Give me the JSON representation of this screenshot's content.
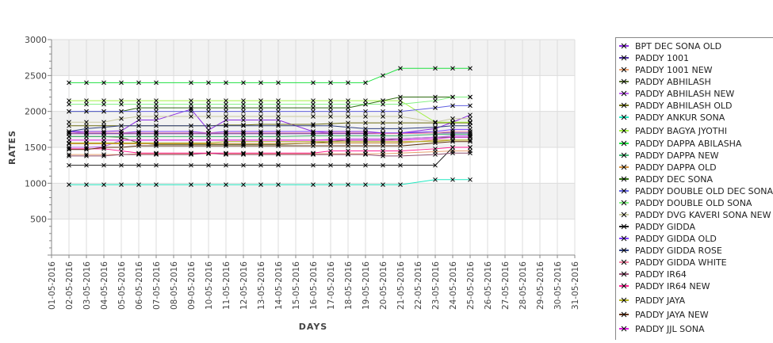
{
  "chart_data": {
    "type": "line",
    "title": "",
    "xlabel": "DAYS",
    "ylabel": "RATES",
    "ylim": [
      0,
      3000
    ],
    "yticks": [
      500,
      1000,
      1500,
      2000,
      2500,
      3000
    ],
    "grid": true,
    "legend_position": "right",
    "x_tick_labels": [
      "01-05-2016",
      "02-05-2016",
      "03-05-2016",
      "04-05-2016",
      "05-05-2016",
      "06-05-2016",
      "07-05-2016",
      "08-05-2016",
      "09-05-2016",
      "10-05-2016",
      "11-05-2016",
      "12-05-2016",
      "13-05-2016",
      "14-05-2016",
      "15-05-2016",
      "16-05-2016",
      "17-05-2016",
      "18-05-2016",
      "19-05-2016",
      "20-05-2016",
      "21-05-2016",
      "22-05-2016",
      "23-05-2016",
      "24-05-2016",
      "25-05-2016",
      "26-05-2016",
      "27-05-2016",
      "28-05-2016",
      "29-05-2016",
      "30-05-2016",
      "31-05-2016"
    ],
    "x_days": [
      2,
      3,
      4,
      5,
      6,
      7,
      9,
      10,
      11,
      12,
      13,
      14,
      16,
      17,
      18,
      19,
      20,
      21,
      23,
      24,
      25
    ],
    "series": [
      {
        "name": "BPT DEC SONA OLD",
        "color": "#8a2be2",
        "values": [
          1720,
          1720,
          1720,
          1730,
          1880,
          1880,
          2030,
          1740,
          1880,
          1880,
          1880,
          1880,
          1720,
          1720,
          1720,
          1720,
          1700,
          1700,
          1760,
          1850,
          1950
        ]
      },
      {
        "name": "PADDY 1001",
        "color": "#4b2ca0",
        "values": [
          1690,
          1690,
          1690,
          1690,
          1690,
          1690,
          1690,
          1690,
          1690,
          1690,
          1690,
          1690,
          1690,
          1690,
          1690,
          1690,
          1690,
          1700,
          1700,
          1700,
          1700
        ]
      },
      {
        "name": "PADDY 1001 NEW",
        "color": "#e8a070",
        "values": [
          1400,
          1400,
          1400,
          1400,
          1410,
          1410,
          1410,
          1410,
          1410,
          1410,
          1410,
          1410,
          1410,
          1410,
          1410,
          1410,
          1410,
          1420,
          1440,
          1450,
          1450
        ]
      },
      {
        "name": "PADDY ABHILASH",
        "color": "#556b2f",
        "values": [
          1650,
          1650,
          1650,
          1640,
          1560,
          1540,
          1540,
          1540,
          1540,
          1540,
          1540,
          1540,
          1560,
          1580,
          1600,
          1600,
          1600,
          1620,
          1640,
          1640,
          1640
        ]
      },
      {
        "name": "PADDY ABHILASH NEW",
        "color": "#c060f0",
        "values": [
          1500,
          1500,
          1510,
          1600,
          1600,
          1600,
          1600,
          1600,
          1600,
          1600,
          1600,
          1600,
          1600,
          1610,
          1620,
          1620,
          1620,
          1620,
          1640,
          1660,
          1660
        ]
      },
      {
        "name": "PADDY ABHILASH OLD",
        "color": "#6b6b10",
        "values": [
          1800,
          1800,
          1800,
          1800,
          1800,
          1800,
          1800,
          1800,
          1810,
          1810,
          1820,
          1820,
          1820,
          1830,
          1840,
          1840,
          1840,
          1840,
          1840,
          1840,
          1840
        ]
      },
      {
        "name": "PADDY ANKUR SONA",
        "color": "#20e8c0",
        "values": [
          980,
          980,
          980,
          980,
          980,
          980,
          980,
          980,
          980,
          980,
          980,
          980,
          980,
          980,
          980,
          980,
          980,
          980,
          1050,
          1050,
          1050
        ]
      },
      {
        "name": "PADDY BAGYA JYOTHI",
        "color": "#a0f040",
        "values": [
          2150,
          2150,
          2150,
          2150,
          2150,
          2150,
          2150,
          2150,
          2150,
          2150,
          2150,
          2150,
          2150,
          2150,
          2150,
          2150,
          2150,
          2150,
          1850,
          1850,
          1850
        ]
      },
      {
        "name": "PADDY DAPPA ABILASHA",
        "color": "#20e040",
        "values": [
          2400,
          2400,
          2400,
          2400,
          2400,
          2400,
          2400,
          2400,
          2400,
          2400,
          2400,
          2400,
          2400,
          2400,
          2400,
          2400,
          2500,
          2600,
          2600,
          2600,
          2600
        ]
      },
      {
        "name": "PADDY DAPPA NEW",
        "color": "#40b070",
        "values": [
          1650,
          1650,
          1650,
          1650,
          1650,
          1650,
          1650,
          1650,
          1650,
          1650,
          1650,
          1650,
          1660,
          1660,
          1660,
          1660,
          1660,
          1660,
          1680,
          1680,
          1680
        ]
      },
      {
        "name": "PADDY DAPPA OLD",
        "color": "#d09040",
        "values": [
          1550,
          1550,
          1550,
          1550,
          1550,
          1550,
          1550,
          1550,
          1550,
          1550,
          1550,
          1550,
          1560,
          1560,
          1560,
          1560,
          1560,
          1560,
          1600,
          1600,
          1600
        ]
      },
      {
        "name": "PADDY DEC SONA",
        "color": "#2e6b10",
        "values": [
          2000,
          2000,
          2000,
          2000,
          2050,
          2050,
          2050,
          2050,
          2050,
          2050,
          2050,
          2050,
          2050,
          2050,
          2050,
          2100,
          2150,
          2200,
          2200,
          2200,
          2200
        ]
      },
      {
        "name": "PADDY DOUBLE OLD DEC SONA",
        "color": "#6060e0",
        "values": [
          2000,
          2000,
          2000,
          2000,
          2000,
          2000,
          2000,
          2000,
          2000,
          2000,
          2000,
          2000,
          2000,
          2000,
          2000,
          2000,
          2000,
          2000,
          2050,
          2080,
          2080
        ]
      },
      {
        "name": "PADDY DOUBLE OLD SONA",
        "color": "#80f080",
        "values": [
          2100,
          2100,
          2100,
          2100,
          2100,
          2100,
          2100,
          2100,
          2100,
          2100,
          2100,
          2100,
          2100,
          2100,
          2100,
          2100,
          2100,
          2100,
          2150,
          2200,
          2200
        ]
      },
      {
        "name": "PADDY DVG KAVERI SONA NEW",
        "color": "#c8c8a0",
        "values": [
          1850,
          1850,
          1850,
          1900,
          1930,
          1930,
          1930,
          1930,
          1930,
          1930,
          1930,
          1930,
          1930,
          1930,
          1930,
          1930,
          1930,
          1930,
          1850,
          1900,
          1900
        ]
      },
      {
        "name": "PADDY GIDDA",
        "color": "#202020",
        "values": [
          1250,
          1250,
          1250,
          1250,
          1250,
          1250,
          1250,
          1250,
          1250,
          1250,
          1250,
          1250,
          1250,
          1250,
          1250,
          1250,
          1250,
          1250,
          1250,
          1500,
          1500
        ]
      },
      {
        "name": "PADDY GIDDA OLD",
        "color": "#8040ff",
        "values": [
          1720,
          1700,
          1700,
          1700,
          1720,
          1720,
          1720,
          1700,
          1720,
          1720,
          1720,
          1720,
          1720,
          1700,
          1700,
          1700,
          1700,
          1700,
          1720,
          1750,
          1750
        ]
      },
      {
        "name": "PADDY GIDDA ROSE",
        "color": "#304080",
        "values": [
          1720,
          1760,
          1780,
          1800,
          1800,
          1800,
          1800,
          1800,
          1800,
          1800,
          1800,
          1800,
          1800,
          1800,
          1780,
          1760,
          1760,
          1760,
          1780,
          1800,
          1800
        ]
      },
      {
        "name": "PADDY GIDDA WHITE",
        "color": "#f080a0",
        "values": [
          1700,
          1700,
          1700,
          1700,
          1700,
          1700,
          1700,
          1700,
          1700,
          1700,
          1700,
          1700,
          1700,
          1700,
          1700,
          1700,
          1690,
          1690,
          1700,
          1720,
          1720
        ]
      },
      {
        "name": "PADDY IR64",
        "color": "#905070",
        "values": [
          1380,
          1380,
          1380,
          1400,
          1400,
          1400,
          1400,
          1420,
          1400,
          1400,
          1400,
          1400,
          1400,
          1400,
          1400,
          1400,
          1380,
          1380,
          1400,
          1420,
          1420
        ]
      },
      {
        "name": "PADDY IR64 NEW",
        "color": "#ff2090",
        "values": [
          1480,
          1480,
          1480,
          1450,
          1420,
          1420,
          1420,
          1420,
          1420,
          1420,
          1420,
          1420,
          1420,
          1450,
          1450,
          1450,
          1450,
          1450,
          1480,
          1500,
          1500
        ]
      },
      {
        "name": "PADDY JAYA",
        "color": "#b0b020",
        "values": [
          1560,
          1560,
          1560,
          1560,
          1560,
          1560,
          1560,
          1560,
          1580,
          1580,
          1580,
          1580,
          1580,
          1580,
          1580,
          1580,
          1580,
          1580,
          1580,
          1600,
          1600
        ]
      },
      {
        "name": "PADDY JAYA NEW",
        "color": "#603010",
        "values": [
          1470,
          1470,
          1500,
          1500,
          1520,
          1520,
          1520,
          1520,
          1520,
          1520,
          1520,
          1520,
          1520,
          1520,
          1520,
          1520,
          1520,
          1520,
          1560,
          1580,
          1580
        ]
      },
      {
        "name": "PADDY JJL SONA",
        "color": "#e020e0",
        "values": [
          1600,
          1600,
          1600,
          1600,
          1600,
          1600,
          1600,
          1600,
          1600,
          1600,
          1600,
          1600,
          1600,
          1600,
          1600,
          1600,
          1600,
          1600,
          1620,
          1640,
          1640
        ]
      }
    ]
  }
}
